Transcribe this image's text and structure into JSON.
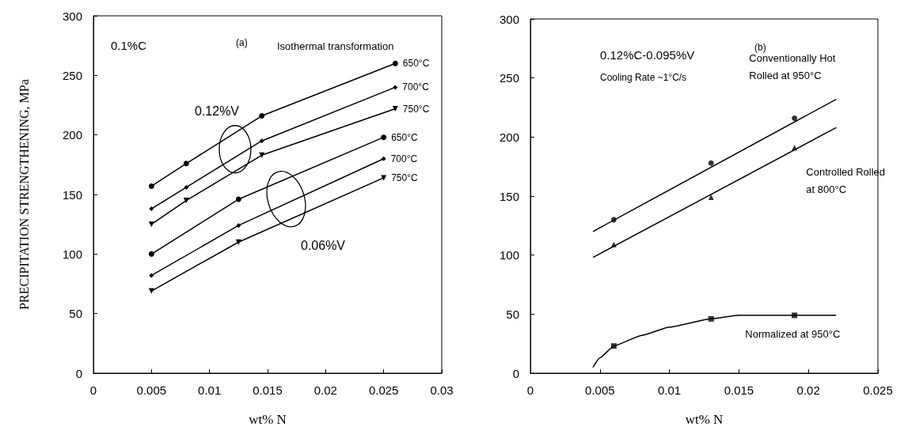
{
  "chart_data": [
    {
      "type": "line",
      "ylabel": "PRECIPITATION STRENGTHENING, MPa",
      "xlabel": "wt% N",
      "annotations": [
        "0.1%C",
        "(a)",
        "Isothermal transformation",
        "0.12%V",
        "0.06%V"
      ],
      "xlim": [
        0,
        0.03
      ],
      "xticks": [
        0,
        0.005,
        0.01,
        0.015,
        0.02,
        0.025,
        0.03
      ],
      "ylim": [
        0,
        300
      ],
      "yticks": [
        0,
        50,
        100,
        150,
        200,
        250,
        300
      ],
      "grid": false,
      "legend": false,
      "series": [
        {
          "name": "650°C",
          "color": "#000000",
          "marker": "circle",
          "x": [
            0.005,
            0.008,
            0.0145,
            0.026
          ],
          "values": [
            157,
            176,
            216,
            260
          ]
        },
        {
          "name": "700°C",
          "color": "#000000",
          "marker": "diamond",
          "x": [
            0.005,
            0.008,
            0.0145,
            0.026
          ],
          "values": [
            138,
            156,
            195,
            240
          ]
        },
        {
          "name": "750°C",
          "color": "#000000",
          "marker": "triangle",
          "x": [
            0.005,
            0.008,
            0.0145,
            0.026
          ],
          "values": [
            125,
            145,
            183,
            222
          ]
        },
        {
          "name": "650°C",
          "color": "#000000",
          "marker": "circle",
          "x": [
            0.005,
            0.0125,
            0.025
          ],
          "values": [
            100,
            146,
            198
          ]
        },
        {
          "name": "700°C",
          "color": "#000000",
          "marker": "diamond",
          "x": [
            0.005,
            0.0125,
            0.025
          ],
          "values": [
            82,
            124,
            180
          ]
        },
        {
          "name": "750°C",
          "color": "#000000",
          "marker": "triangle",
          "x": [
            0.005,
            0.0125,
            0.025
          ],
          "values": [
            69,
            110,
            164
          ]
        }
      ]
    },
    {
      "type": "line",
      "xlabel": "wt% N",
      "annotations": [
        "0.12%C-0.095%V",
        "(b)",
        "Cooling Rate ~1°C/s"
      ],
      "xlim": [
        0,
        0.025
      ],
      "xticks": [
        0,
        0.005,
        0.01,
        0.015,
        0.02,
        0.025
      ],
      "ylim": [
        0,
        300
      ],
      "yticks": [
        0,
        50,
        100,
        150,
        200,
        250,
        300
      ],
      "grid": false,
      "legend": false,
      "series": [
        {
          "name": "Conventionally Hot Rolled at 950°C",
          "color": "#000000",
          "marker": "none",
          "x": [
            0.0045,
            0.022
          ],
          "values": [
            120,
            232
          ]
        },
        {
          "type": "scatter",
          "color": "#000000",
          "marker": "circle",
          "x": [
            0.006,
            0.013,
            0.019
          ],
          "values": [
            130,
            178,
            216
          ]
        },
        {
          "name": "Controlled Rolled at 800°C",
          "color": "#000000",
          "marker": "none",
          "x": [
            0.0045,
            0.022
          ],
          "values": [
            98,
            208
          ]
        },
        {
          "type": "scatter",
          "color": "#000000",
          "marker": "triangle",
          "x": [
            0.006,
            0.013,
            0.019
          ],
          "values": [
            109,
            149,
            191
          ]
        },
        {
          "name": "Normalized at 950°C",
          "color": "#000000",
          "marker": "none",
          "x": [
            0.0045,
            0.005,
            0.006,
            0.008,
            0.01,
            0.013,
            0.015,
            0.019,
            0.022
          ],
          "values": [
            5,
            13,
            23,
            32,
            39,
            46,
            49,
            49,
            49
          ]
        },
        {
          "type": "scatter",
          "color": "#000000",
          "marker": "square",
          "x": [
            0.006,
            0.013,
            0.019
          ],
          "values": [
            23,
            46,
            49
          ]
        }
      ]
    }
  ]
}
